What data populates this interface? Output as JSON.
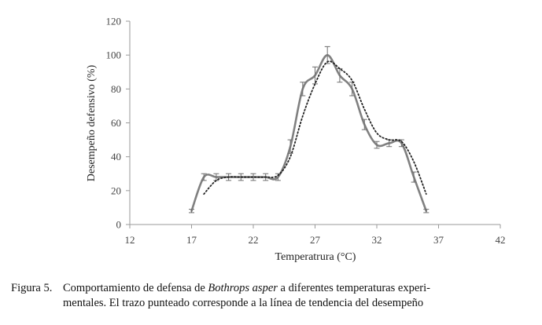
{
  "chart_data": {
    "type": "line",
    "xlabel": "Temperatrura (°C)",
    "ylabel": "Desempeño defensivo (%)",
    "xlim": [
      12,
      42
    ],
    "ylim": [
      0,
      120
    ],
    "xticks": [
      12,
      17,
      22,
      27,
      32,
      37,
      42
    ],
    "yticks": [
      0,
      20,
      40,
      60,
      80,
      100,
      120
    ],
    "grid": false,
    "legend": "none",
    "series": [
      {
        "style": "solid",
        "color": "#808080",
        "error_bars": true,
        "x": [
          17,
          18,
          19,
          20,
          21,
          22,
          23,
          24,
          25,
          26,
          27,
          28,
          29,
          30,
          31,
          32,
          33,
          34,
          35,
          36
        ],
        "y": [
          8,
          28,
          28,
          28,
          28,
          28,
          28,
          28,
          46,
          80,
          88,
          100,
          88,
          80,
          59,
          47,
          48,
          48,
          28,
          8
        ],
        "err": [
          1,
          2,
          2,
          2,
          2,
          2,
          2,
          2,
          4,
          4,
          5,
          5,
          4,
          4,
          3,
          2,
          2,
          2,
          3,
          1
        ]
      },
      {
        "style": "dotted",
        "color": "#222222",
        "x": [
          18,
          19,
          20,
          21,
          22,
          23,
          24,
          25,
          26,
          27,
          28,
          29,
          30,
          31,
          32,
          33,
          34,
          35,
          36
        ],
        "y": [
          18,
          26,
          28,
          28,
          28,
          28,
          29,
          40,
          64,
          83,
          96,
          92,
          85,
          68,
          54,
          50,
          49,
          37,
          18
        ]
      }
    ]
  },
  "caption": {
    "label": "Figura 5.",
    "text_before": "Comportamiento de defensa de ",
    "species": "Bothrops asper",
    "text_after": " a diferentes temperaturas experi-",
    "line2": "mentales. El trazo punteado corresponde a la línea de tendencia del desempeño"
  }
}
